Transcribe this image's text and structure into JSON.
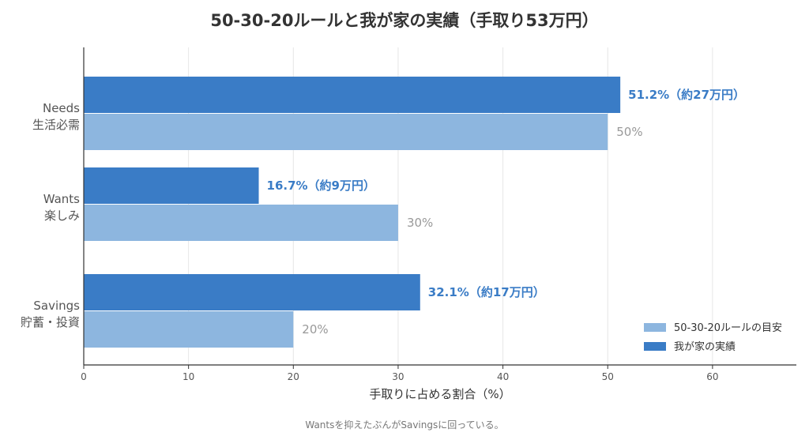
{
  "chart_data": {
    "type": "bar",
    "orientation": "horizontal",
    "title": "50-30-20ルールと我が家の実績（手取り53万円）",
    "categories": [
      [
        "Needs",
        "生活必需"
      ],
      [
        "Wants",
        "楽しみ"
      ],
      [
        "Savings",
        "貯蓄・投資"
      ]
    ],
    "series": [
      {
        "name": "50-30-20ルールの目安",
        "values": [
          50,
          30,
          20
        ],
        "labels": [
          "50%",
          "30%",
          "20%"
        ],
        "color": "#8db6df"
      },
      {
        "name": "我が家の実績",
        "values": [
          51.2,
          16.7,
          32.1
        ],
        "labels": [
          "51.2%（約27万円）",
          "16.7%（約9万円）",
          "32.1%（約17万円）"
        ],
        "color": "#3a7cc6"
      }
    ],
    "xlabel": "手取りに占める割合（%）",
    "xlim": [
      0,
      68
    ],
    "xticks": [
      0,
      10,
      20,
      30,
      40,
      50,
      60
    ],
    "grid": true,
    "legend_position": "bottom-right"
  },
  "note": "Wantsを抑えたぶんがSavingsに回っている。"
}
